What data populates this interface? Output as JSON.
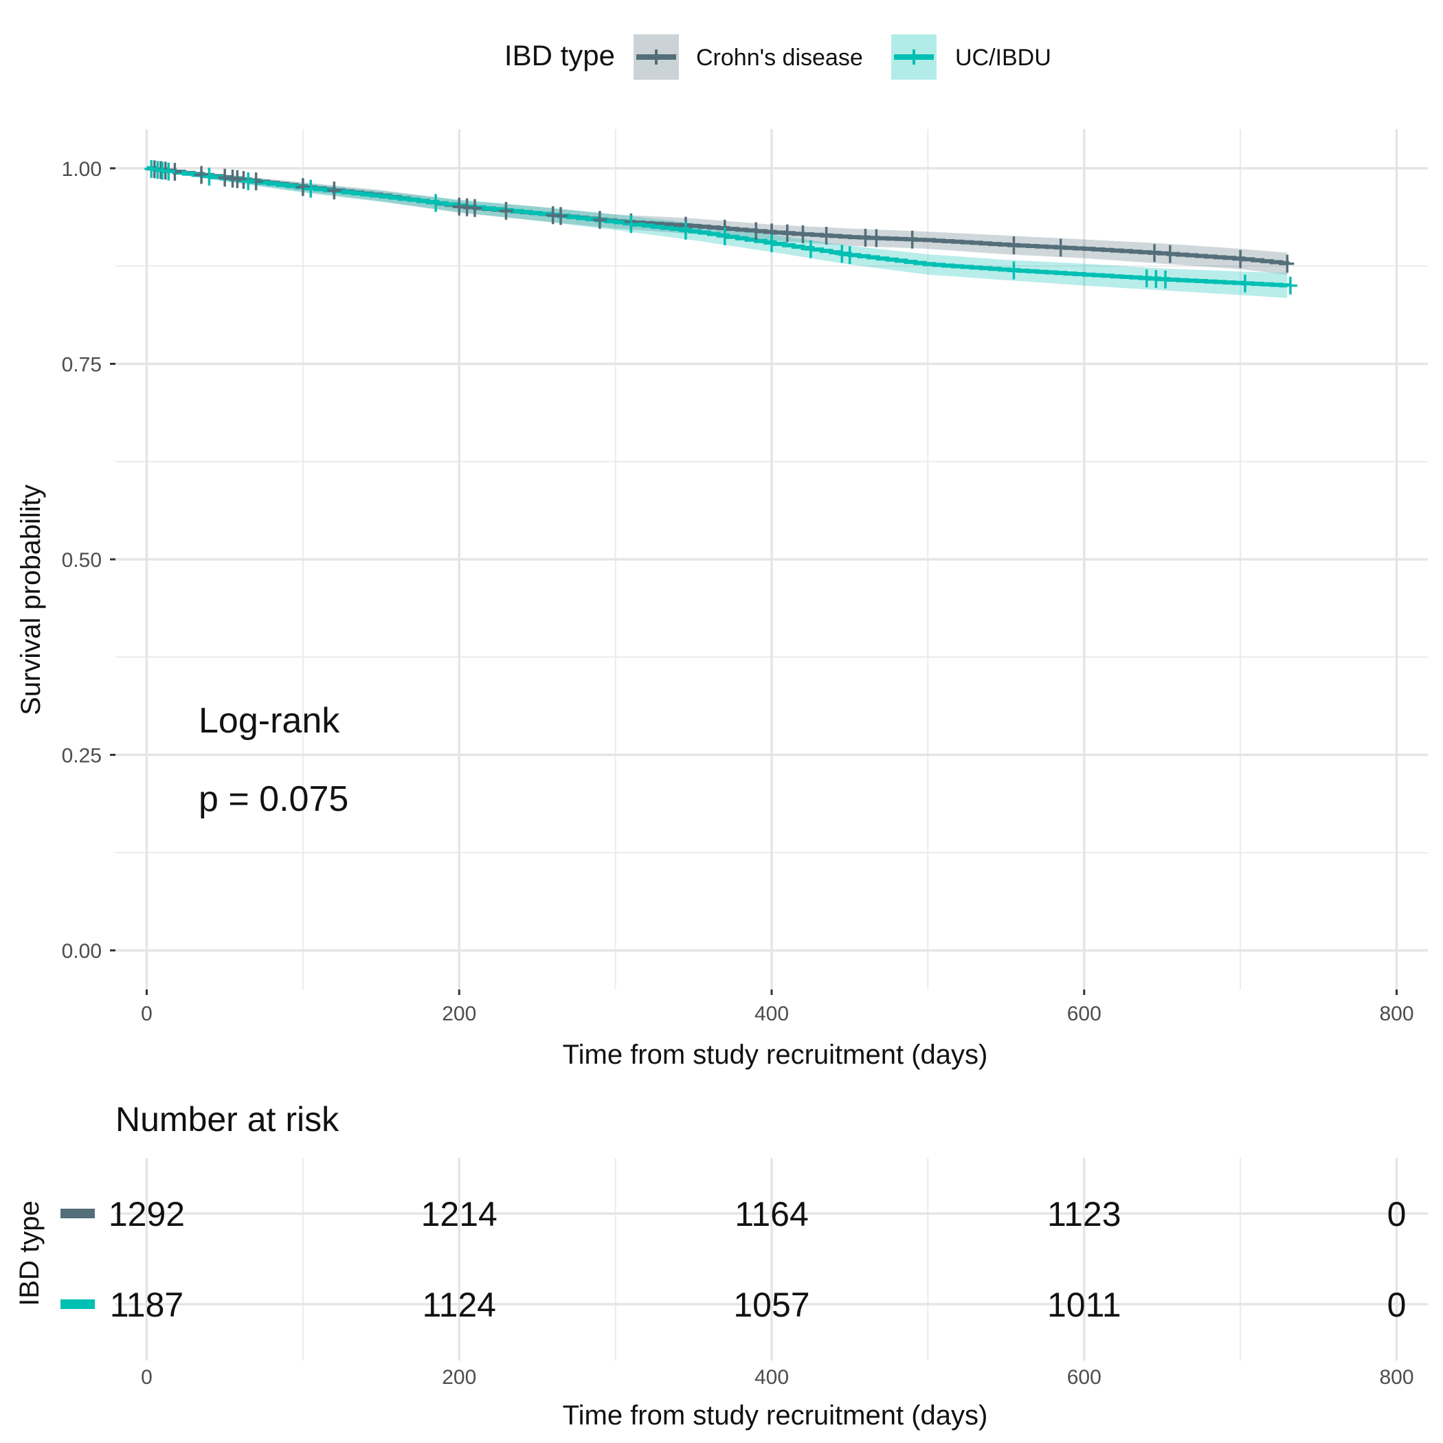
{
  "chart_data": {
    "type": "line",
    "subtype": "kaplan-meier",
    "xlabel": "Time from study recruitment (days)",
    "ylabel": "Survival probability",
    "xlim": [
      -20,
      820
    ],
    "ylim": [
      -0.05,
      1.05
    ],
    "x_ticks": [
      0,
      200,
      400,
      600,
      800
    ],
    "y_ticks": [
      0.0,
      0.25,
      0.5,
      0.75,
      1.0
    ],
    "y_tick_labels": [
      "0.00",
      "0.25",
      "0.50",
      "0.75",
      "1.00"
    ],
    "grid": true,
    "legend": {
      "title": "IBD type",
      "position": "top"
    },
    "annotation": {
      "line1": "Log-rank",
      "line2": "p = 0.075"
    },
    "series": [
      {
        "name": "Crohn's disease",
        "color": "#546e7a",
        "ci_fill": "#546e7a",
        "points": [
          [
            0,
            1.0
          ],
          [
            20,
            0.995
          ],
          [
            50,
            0.988
          ],
          [
            100,
            0.976
          ],
          [
            150,
            0.965
          ],
          [
            200,
            0.951
          ],
          [
            250,
            0.942
          ],
          [
            300,
            0.932
          ],
          [
            350,
            0.926
          ],
          [
            400,
            0.918
          ],
          [
            450,
            0.912
          ],
          [
            500,
            0.908
          ],
          [
            550,
            0.902
          ],
          [
            600,
            0.897
          ],
          [
            650,
            0.891
          ],
          [
            700,
            0.884
          ],
          [
            730,
            0.878
          ]
        ],
        "ci_halfwidth": [
          0,
          0.002,
          0.004,
          0.006,
          0.007,
          0.008,
          0.009,
          0.009,
          0.01,
          0.01,
          0.011,
          0.011,
          0.012,
          0.012,
          0.013,
          0.013,
          0.014
        ],
        "censor_x": [
          5,
          9,
          12,
          18,
          35,
          50,
          55,
          58,
          62,
          70,
          100,
          120,
          200,
          205,
          210,
          230,
          260,
          265,
          290,
          310,
          345,
          370,
          390,
          400,
          410,
          420,
          435,
          460,
          467,
          490,
          555,
          585,
          645,
          655,
          700,
          730
        ]
      },
      {
        "name": "UC/IBDU",
        "color": "#00bfb3",
        "ci_fill": "#00bfb3",
        "points": [
          [
            0,
            1.0
          ],
          [
            20,
            0.994
          ],
          [
            50,
            0.987
          ],
          [
            100,
            0.975
          ],
          [
            150,
            0.964
          ],
          [
            200,
            0.952
          ],
          [
            250,
            0.942
          ],
          [
            300,
            0.931
          ],
          [
            350,
            0.919
          ],
          [
            400,
            0.904
          ],
          [
            450,
            0.889
          ],
          [
            500,
            0.877
          ],
          [
            550,
            0.87
          ],
          [
            600,
            0.864
          ],
          [
            650,
            0.858
          ],
          [
            700,
            0.853
          ],
          [
            730,
            0.85
          ]
        ],
        "ci_halfwidth": [
          0,
          0.002,
          0.004,
          0.006,
          0.007,
          0.008,
          0.009,
          0.01,
          0.011,
          0.011,
          0.012,
          0.013,
          0.013,
          0.014,
          0.014,
          0.015,
          0.016
        ],
        "censor_x": [
          3,
          7,
          10,
          14,
          40,
          65,
          105,
          185,
          310,
          345,
          370,
          400,
          425,
          445,
          450,
          555,
          640,
          646,
          652,
          703,
          732
        ]
      }
    ],
    "risk_table": {
      "title": "Number at risk",
      "ylabel": "IBD type",
      "xlabel": "Time from study recruitment (days)",
      "times": [
        0,
        200,
        400,
        600,
        800
      ],
      "rows": [
        {
          "name": "Crohn's disease",
          "color": "#546e7a",
          "values": [
            "1292",
            "1214",
            "1164",
            "1123",
            "0"
          ]
        },
        {
          "name": "UC/IBDU",
          "color": "#00bfb3",
          "values": [
            "1187",
            "1124",
            "1057",
            "1011",
            "0"
          ]
        }
      ]
    }
  }
}
